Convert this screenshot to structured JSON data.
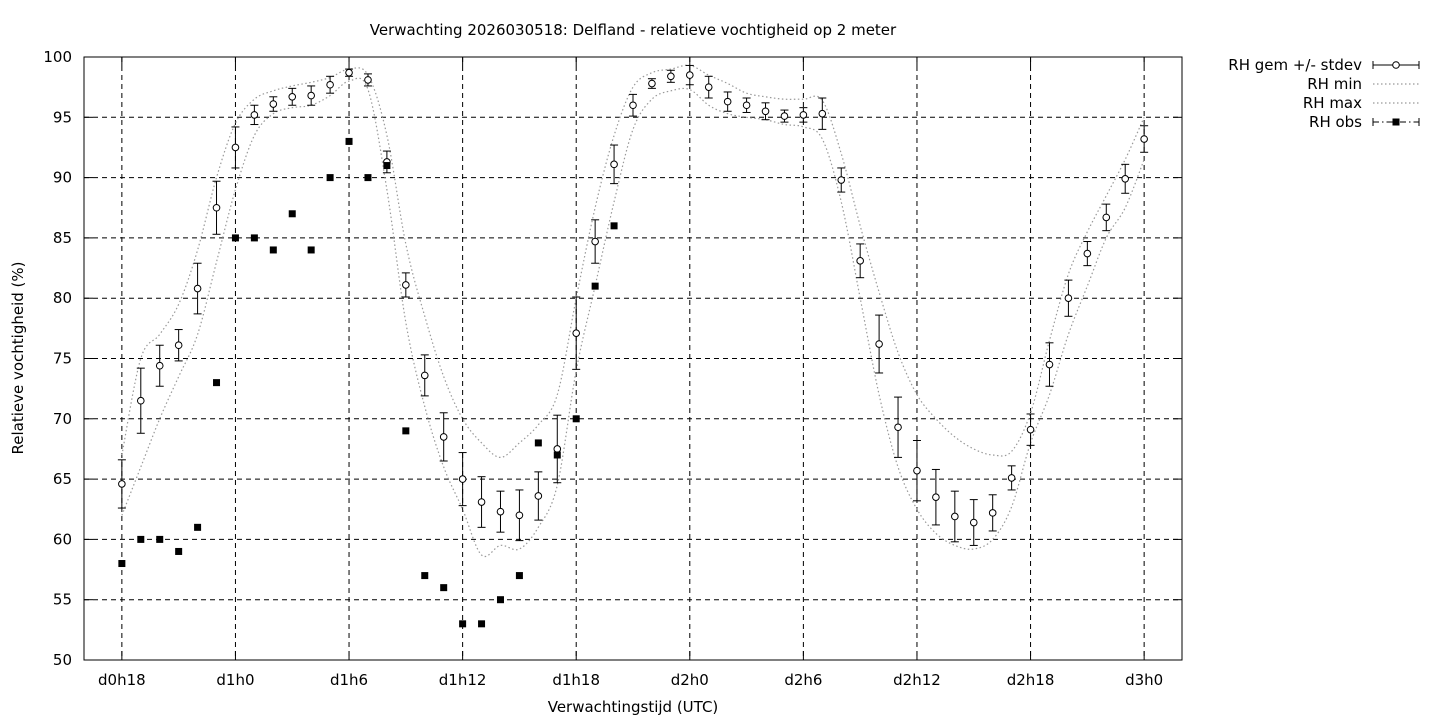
{
  "chart_data": {
    "type": "line",
    "title": "Verwachting 2026030518: Delfland - relatieve vochtigheid op 2 meter",
    "xlabel": "Verwachtingstijd (UTC)",
    "ylabel": "Relatieve vochtigheid (%)",
    "ylim": [
      50,
      100
    ],
    "xlim_hours": [
      -2,
      56
    ],
    "grid": true,
    "legend_position": "top-right outside",
    "x_ticks": [
      {
        "hour": 0,
        "label": "d0h18"
      },
      {
        "hour": 6,
        "label": "d1h0"
      },
      {
        "hour": 12,
        "label": "d1h6"
      },
      {
        "hour": 18,
        "label": "d1h12"
      },
      {
        "hour": 24,
        "label": "d1h18"
      },
      {
        "hour": 30,
        "label": "d2h0"
      },
      {
        "hour": 36,
        "label": "d2h6"
      },
      {
        "hour": 42,
        "label": "d2h12"
      },
      {
        "hour": 48,
        "label": "d2h18"
      },
      {
        "hour": 54,
        "label": "d3h0"
      }
    ],
    "y_ticks": [
      50,
      55,
      60,
      65,
      70,
      75,
      80,
      85,
      90,
      95,
      100
    ],
    "legend": [
      {
        "label": "RH gem +/- stdev",
        "style": "errorbar"
      },
      {
        "label": "RH min",
        "style": "dotted"
      },
      {
        "label": "RH max",
        "style": "dotted"
      },
      {
        "label": "RH obs",
        "style": "dashdot-square"
      }
    ],
    "series": [
      {
        "name": "RH gem +/- stdev",
        "x": [
          0,
          1,
          2,
          3,
          4,
          5,
          6,
          7,
          8,
          9,
          10,
          11,
          12,
          13,
          14,
          15,
          16,
          17,
          18,
          19,
          20,
          21,
          22,
          23,
          24,
          25,
          26,
          27,
          28,
          29,
          30,
          31,
          32,
          33,
          34,
          35,
          36,
          37,
          38,
          39,
          40,
          41,
          42,
          43,
          44,
          45,
          46,
          47,
          48,
          49,
          50,
          51,
          52,
          53,
          54
        ],
        "values": [
          64.6,
          71.5,
          74.4,
          76.1,
          80.8,
          87.5,
          92.5,
          95.2,
          96.1,
          96.7,
          96.8,
          97.7,
          98.7,
          98.1,
          91.3,
          81.1,
          73.6,
          68.5,
          65.0,
          63.1,
          62.3,
          62.0,
          63.6,
          67.5,
          77.1,
          84.7,
          91.1,
          96.0,
          97.8,
          98.4,
          98.5,
          97.5,
          96.3,
          96.0,
          95.5,
          95.1,
          95.2,
          95.3,
          89.8,
          83.1,
          76.2,
          69.3,
          65.7,
          63.5,
          61.9,
          61.4,
          62.2,
          65.1,
          69.1,
          74.5,
          80.0,
          83.7,
          86.7,
          89.9,
          93.2
        ],
        "stdev": [
          2.0,
          2.7,
          1.7,
          1.3,
          2.1,
          2.2,
          1.7,
          0.8,
          0.6,
          0.7,
          0.8,
          0.7,
          0.3,
          0.5,
          0.9,
          1.0,
          1.7,
          2.0,
          2.2,
          2.1,
          1.7,
          2.1,
          2.0,
          2.8,
          3.0,
          1.8,
          1.6,
          0.9,
          0.4,
          0.5,
          0.8,
          0.9,
          0.8,
          0.6,
          0.7,
          0.5,
          0.6,
          1.3,
          1.0,
          1.4,
          2.4,
          2.5,
          2.5,
          2.3,
          2.1,
          1.9,
          1.5,
          1.0,
          1.3,
          1.8,
          1.5,
          1.0,
          1.1,
          1.2,
          1.1
        ]
      },
      {
        "name": "RH min",
        "x": [
          0,
          1,
          2,
          3,
          4,
          5,
          6,
          7,
          8,
          9,
          10,
          11,
          12,
          13,
          14,
          15,
          16,
          17,
          18,
          19,
          20,
          21,
          22,
          23,
          24,
          25,
          26,
          27,
          28,
          29,
          30,
          31,
          32,
          33,
          34,
          35,
          36,
          37,
          38,
          39,
          40,
          41,
          42,
          43,
          44,
          45,
          46,
          47,
          48,
          49,
          50,
          51,
          52,
          53,
          54
        ],
        "values": [
          62.0,
          66.0,
          70.0,
          73.5,
          77.0,
          83.0,
          89.0,
          93.5,
          95.3,
          95.8,
          96.0,
          96.8,
          98.0,
          97.3,
          89.0,
          78.0,
          71.0,
          66.0,
          62.5,
          58.7,
          59.5,
          59.2,
          61.0,
          64.5,
          74.0,
          81.0,
          88.0,
          94.0,
          96.5,
          97.2,
          97.3,
          96.0,
          95.3,
          95.0,
          94.8,
          94.4,
          94.2,
          93.2,
          88.0,
          80.0,
          72.0,
          66.0,
          62.5,
          60.5,
          59.5,
          59.2,
          60.0,
          62.7,
          68.0,
          72.0,
          77.0,
          81.0,
          85.0,
          87.5,
          91.5
        ]
      },
      {
        "name": "RH max",
        "x": [
          0,
          1,
          2,
          3,
          4,
          5,
          6,
          7,
          8,
          9,
          10,
          11,
          12,
          13,
          14,
          15,
          16,
          17,
          18,
          19,
          20,
          21,
          22,
          23,
          24,
          25,
          26,
          27,
          28,
          29,
          30,
          31,
          32,
          33,
          34,
          35,
          36,
          37,
          38,
          39,
          40,
          41,
          42,
          43,
          44,
          45,
          46,
          47,
          48,
          49,
          50,
          51,
          52,
          53,
          54
        ],
        "values": [
          67.0,
          75.0,
          77.0,
          79.5,
          84.0,
          90.0,
          94.5,
          96.5,
          97.2,
          97.6,
          97.9,
          98.3,
          99.0,
          98.5,
          93.5,
          84.5,
          78.5,
          73.5,
          70.0,
          68.0,
          66.8,
          68.0,
          69.5,
          72.0,
          80.0,
          87.5,
          93.5,
          97.5,
          98.7,
          99.0,
          99.3,
          98.5,
          97.8,
          97.0,
          96.7,
          96.5,
          96.5,
          96.4,
          92.0,
          86.0,
          80.5,
          75.5,
          72.0,
          70.0,
          68.5,
          67.5,
          67.0,
          67.3,
          70.5,
          76.5,
          82.0,
          85.5,
          88.5,
          91.5,
          95.0
        ]
      },
      {
        "name": "RH obs",
        "x": [
          0,
          1,
          2,
          3,
          4,
          5,
          6,
          7,
          8,
          9,
          10,
          11,
          12,
          13,
          14,
          15,
          16,
          17,
          18,
          19,
          20,
          21,
          22,
          23,
          24,
          25,
          26
        ],
        "values": [
          58,
          60,
          60,
          59,
          61,
          73,
          85,
          85,
          84,
          87,
          84,
          90,
          93,
          90,
          91,
          69,
          57,
          56,
          53,
          53,
          55,
          57,
          68,
          67,
          70,
          81,
          86
        ]
      }
    ]
  }
}
